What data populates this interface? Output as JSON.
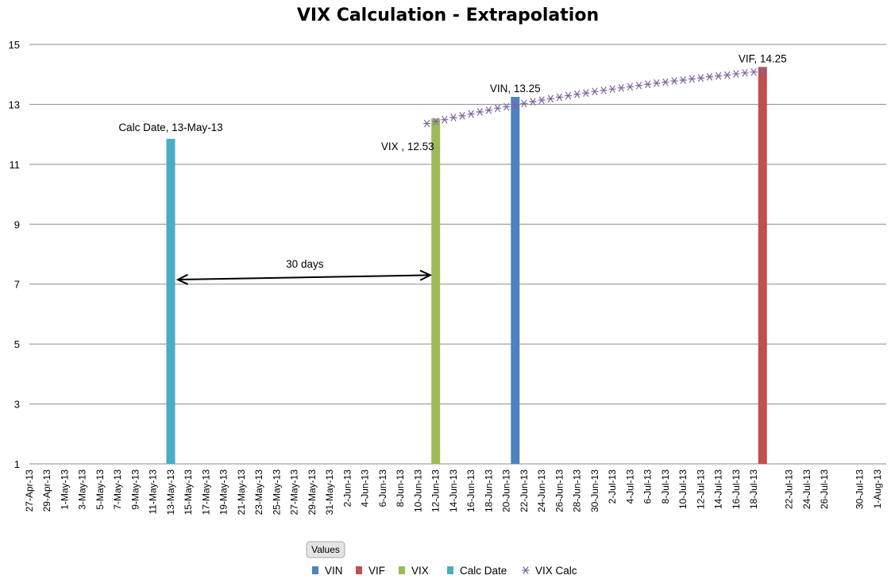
{
  "chart_data": {
    "type": "bar",
    "title": "VIX Calculation - Extrapolation",
    "xlabel": "",
    "ylabel": "",
    "ylim": [
      1,
      15
    ],
    "yticks": [
      1,
      3,
      5,
      7,
      9,
      11,
      13,
      15
    ],
    "grid": true,
    "legend_position": "bottom",
    "x_start": "27-Apr-13",
    "x_end": "2-Aug-13",
    "x_tick_labels": [
      "27-Apr-13",
      "29-Apr-13",
      "1-May-13",
      "3-May-13",
      "5-May-13",
      "7-May-13",
      "9-May-13",
      "11-May-13",
      "13-May-13",
      "15-May-13",
      "17-May-13",
      "19-May-13",
      "21-May-13",
      "23-May-13",
      "25-May-13",
      "27-May-13",
      "29-May-13",
      "31-May-13",
      "2-Jun-13",
      "4-Jun-13",
      "6-Jun-13",
      "8-Jun-13",
      "10-Jun-13",
      "12-Jun-13",
      "14-Jun-13",
      "16-Jun-13",
      "18-Jun-13",
      "20-Jun-13",
      "22-Jun-13",
      "24-Jun-13",
      "26-Jun-13",
      "28-Jun-13",
      "30-Jun-13",
      "2-Jul-13",
      "4-Jul-13",
      "6-Jul-13",
      "8-Jul-13",
      "10-Jul-13",
      "12-Jul-13",
      "14-Jul-13",
      "16-Jul-13",
      "18-Jul-13",
      "22-Jul-13",
      "24-Jul-13",
      "26-Jul-13",
      "30-Jul-13",
      "1-Aug-13"
    ],
    "bar_series": [
      {
        "name": "VIN",
        "color": "#4F81BD",
        "date": "21-Jun-13",
        "value": 13.25,
        "label": "VIN, 13.25"
      },
      {
        "name": "VIF",
        "color": "#C0504D",
        "date": "19-Jul-13",
        "value": 14.25,
        "label": "VIF, 14.25"
      },
      {
        "name": "VIX",
        "color": "#9BBB59",
        "date": "12-Jun-13",
        "value": 12.53,
        "label": "VIX , 12.53"
      },
      {
        "name": "Calc Date",
        "color": "#4BACC6",
        "date": "13-May-13",
        "value": 11.85,
        "label": "Calc Date, 13-May-13"
      }
    ],
    "line_series": {
      "name": "VIX Calc",
      "color": "#8064A2",
      "marker": "star",
      "start_date": "11-Jun-13",
      "end_date": "19-Jul-13",
      "points": [
        [
          "11-Jun-13",
          12.36
        ],
        [
          "12-Jun-13",
          12.43
        ],
        [
          "13-Jun-13",
          12.49
        ],
        [
          "14-Jun-13",
          12.56
        ],
        [
          "15-Jun-13",
          12.62
        ],
        [
          "16-Jun-13",
          12.68
        ],
        [
          "17-Jun-13",
          12.75
        ],
        [
          "18-Jun-13",
          12.81
        ],
        [
          "19-Jun-13",
          12.87
        ],
        [
          "20-Jun-13",
          12.92
        ],
        [
          "21-Jun-13",
          12.98
        ],
        [
          "22-Jun-13",
          13.03
        ],
        [
          "23-Jun-13",
          13.09
        ],
        [
          "24-Jun-13",
          13.14
        ],
        [
          "25-Jun-13",
          13.19
        ],
        [
          "26-Jun-13",
          13.24
        ],
        [
          "27-Jun-13",
          13.29
        ],
        [
          "28-Jun-13",
          13.34
        ],
        [
          "29-Jun-13",
          13.38
        ],
        [
          "30-Jun-13",
          13.43
        ],
        [
          "1-Jul-13",
          13.47
        ],
        [
          "2-Jul-13",
          13.51
        ],
        [
          "3-Jul-13",
          13.55
        ],
        [
          "4-Jul-13",
          13.59
        ],
        [
          "5-Jul-13",
          13.63
        ],
        [
          "6-Jul-13",
          13.67
        ],
        [
          "7-Jul-13",
          13.71
        ],
        [
          "8-Jul-13",
          13.74
        ],
        [
          "9-Jul-13",
          13.78
        ],
        [
          "10-Jul-13",
          13.81
        ],
        [
          "11-Jul-13",
          13.85
        ],
        [
          "12-Jul-13",
          13.88
        ],
        [
          "13-Jul-13",
          13.92
        ],
        [
          "14-Jul-13",
          13.95
        ],
        [
          "15-Jul-13",
          13.98
        ],
        [
          "16-Jul-13",
          14.02
        ],
        [
          "17-Jul-13",
          14.05
        ],
        [
          "18-Jul-13",
          14.08
        ],
        [
          "19-Jul-13",
          14.11
        ]
      ]
    },
    "annotation": {
      "text": "30 days",
      "from": {
        "date": "13-May-13",
        "y": 7.15
      },
      "to": {
        "date": "12-Jun-13",
        "y": 7.3
      }
    },
    "legend": [
      "VIN",
      "VIF",
      "VIX",
      "Calc Date",
      "VIX Calc"
    ],
    "values_button": "Values"
  }
}
